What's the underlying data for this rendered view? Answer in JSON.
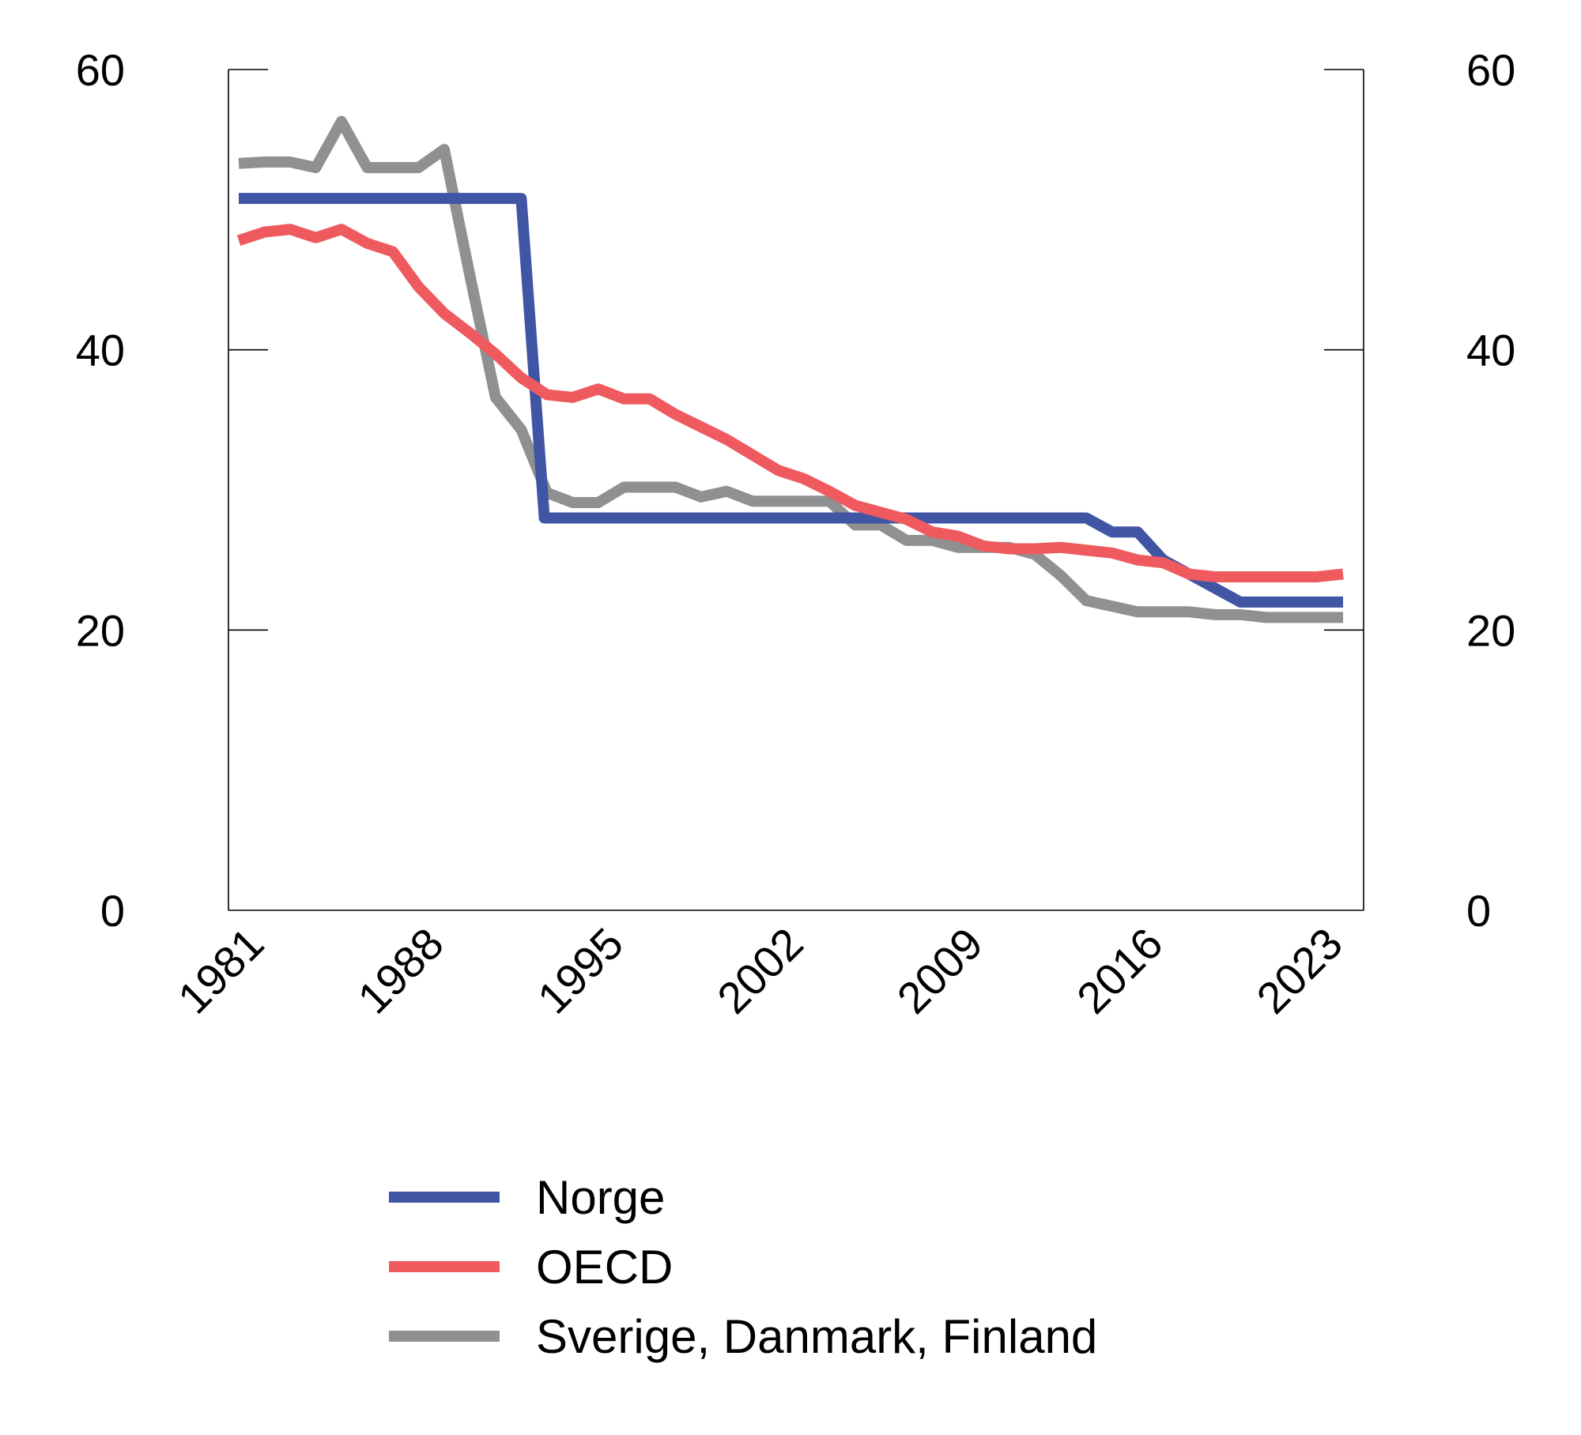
{
  "chart_data": {
    "type": "line",
    "title": "",
    "xlabel": "",
    "ylabel": "",
    "x": [
      1981,
      1982,
      1983,
      1984,
      1985,
      1986,
      1987,
      1988,
      1989,
      1990,
      1991,
      1992,
      1993,
      1994,
      1995,
      1996,
      1997,
      1998,
      1999,
      2000,
      2001,
      2002,
      2003,
      2004,
      2005,
      2006,
      2007,
      2008,
      2009,
      2010,
      2011,
      2012,
      2013,
      2014,
      2015,
      2016,
      2017,
      2018,
      2019,
      2020,
      2021,
      2022,
      2023,
      2024
    ],
    "xticks": [
      "1981",
      "1988",
      "1995",
      "2002",
      "2009",
      "2016",
      "2023"
    ],
    "xlim": [
      1980.6,
      2024.8
    ],
    "ylim": [
      0,
      60
    ],
    "yticks_left": [
      "0",
      "20",
      "40",
      "60"
    ],
    "yticks_right": [
      "0",
      "20",
      "40",
      "60"
    ],
    "grid": false,
    "legend_position": "bottom",
    "series": [
      {
        "name": "Norge",
        "color": "#4055a4",
        "step_year": 1992.9,
        "values": [
          50.8,
          50.8,
          50.8,
          50.8,
          50.8,
          50.8,
          50.8,
          50.8,
          50.8,
          50.8,
          50.8,
          28,
          28,
          28,
          28,
          28,
          28,
          28,
          28,
          28,
          28,
          28,
          28,
          28,
          28,
          28,
          28,
          28,
          28,
          28,
          28,
          28,
          28,
          28,
          27,
          27,
          25,
          24,
          23,
          22,
          22,
          22,
          22,
          22
        ]
      },
      {
        "name": "OECD",
        "color": "#ef5a5f",
        "values": [
          47.8,
          48.4,
          48.6,
          48.0,
          48.6,
          47.6,
          47.0,
          44.5,
          42.6,
          41.2,
          39.7,
          38.0,
          36.8,
          36.6,
          37.2,
          36.5,
          36.5,
          35.4,
          34.5,
          33.6,
          32.5,
          31.4,
          30.8,
          29.9,
          28.9,
          28.4,
          27.9,
          27.0,
          26.7,
          26.0,
          25.8,
          25.8,
          25.9,
          25.7,
          25.5,
          25.0,
          24.8,
          24.0,
          23.8,
          23.8,
          23.8,
          23.8,
          23.8,
          24.0
        ]
      },
      {
        "name": "Sverige, Danmark, Finland",
        "color": "#8e9091",
        "values": [
          53.3,
          53.4,
          53.4,
          53.0,
          56.3,
          53.0,
          53.0,
          53.0,
          54.3,
          45.3,
          36.6,
          34.3,
          29.8,
          29.1,
          29.1,
          30.2,
          30.2,
          30.2,
          29.5,
          29.9,
          29.2,
          29.2,
          29.2,
          29.2,
          27.5,
          27.5,
          26.4,
          26.4,
          25.9,
          25.9,
          25.9,
          25.4,
          23.9,
          22.1,
          21.7,
          21.3,
          21.3,
          21.3,
          21.1,
          21.1,
          20.9,
          20.9,
          20.9,
          20.9
        ]
      }
    ]
  }
}
